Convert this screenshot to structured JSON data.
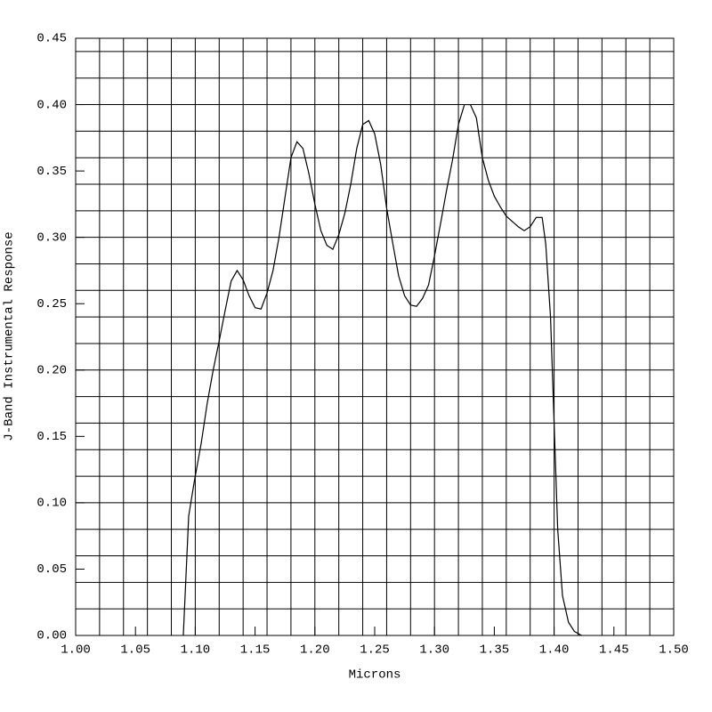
{
  "chart_data": {
    "type": "line",
    "xlabel": "Microns",
    "ylabel": "J-Band Instrumental Response",
    "x": [
      1.09,
      1.0945,
      1.099,
      1.105,
      1.11,
      1.115,
      1.12,
      1.125,
      1.13,
      1.135,
      1.14,
      1.145,
      1.15,
      1.155,
      1.16,
      1.165,
      1.17,
      1.175,
      1.18,
      1.185,
      1.19,
      1.195,
      1.2,
      1.205,
      1.21,
      1.215,
      1.22,
      1.225,
      1.23,
      1.235,
      1.24,
      1.245,
      1.25,
      1.255,
      1.26,
      1.265,
      1.27,
      1.275,
      1.28,
      1.285,
      1.29,
      1.295,
      1.3,
      1.305,
      1.31,
      1.315,
      1.32,
      1.325,
      1.33,
      1.335,
      1.34,
      1.345,
      1.35,
      1.355,
      1.36,
      1.365,
      1.37,
      1.375,
      1.38,
      1.385,
      1.39,
      1.393,
      1.397,
      1.4,
      1.403,
      1.407,
      1.412,
      1.417,
      1.423
    ],
    "series": [
      {
        "color": "#000000",
        "values": [
          0,
          0.09,
          0.115,
          0.145,
          0.175,
          0.2,
          0.222,
          0.245,
          0.267,
          0.275,
          0.268,
          0.256,
          0.247,
          0.246,
          0.258,
          0.275,
          0.3,
          0.33,
          0.36,
          0.372,
          0.367,
          0.348,
          0.325,
          0.305,
          0.294,
          0.291,
          0.302,
          0.318,
          0.34,
          0.367,
          0.385,
          0.388,
          0.378,
          0.355,
          0.322,
          0.296,
          0.271,
          0.256,
          0.249,
          0.248,
          0.254,
          0.264,
          0.286,
          0.31,
          0.335,
          0.358,
          0.385,
          0.4,
          0.4,
          0.39,
          0.36,
          0.343,
          0.331,
          0.323,
          0.316,
          0.312,
          0.308,
          0.305,
          0.308,
          0.315,
          0.315,
          0.295,
          0.24,
          0.16,
          0.08,
          0.03,
          0.01,
          0.003,
          0
        ]
      }
    ],
    "xlim": [
      1.0,
      1.5
    ],
    "ylim": [
      0,
      0.45
    ],
    "xticks": [
      {
        "value": 1.0,
        "label": "1.00"
      },
      {
        "value": 1.05,
        "label": "1.05"
      },
      {
        "value": 1.1,
        "label": "1.10"
      },
      {
        "value": 1.15,
        "label": "1.15"
      },
      {
        "value": 1.2,
        "label": "1.20"
      },
      {
        "value": 1.25,
        "label": "1.25"
      },
      {
        "value": 1.3,
        "label": "1.30"
      },
      {
        "value": 1.35,
        "label": "1.35"
      },
      {
        "value": 1.4,
        "label": "1.40"
      },
      {
        "value": 1.45,
        "label": "1.45"
      },
      {
        "value": 1.5,
        "label": "1.50"
      }
    ],
    "yticks": [
      {
        "value": 0,
        "label": "0.00"
      },
      {
        "value": 0.05,
        "label": "0.05"
      },
      {
        "value": 0.1,
        "label": "0.10"
      },
      {
        "value": 0.15,
        "label": "0.15"
      },
      {
        "value": 0.2,
        "label": "0.20"
      },
      {
        "value": 0.25,
        "label": "0.25"
      },
      {
        "value": 0.3,
        "label": "0.30"
      },
      {
        "value": 0.35,
        "label": "0.35"
      },
      {
        "value": 0.4,
        "label": "0.40"
      },
      {
        "value": 0.45,
        "label": "0.45"
      }
    ],
    "xgrid": [
      1.0,
      1.02,
      1.04,
      1.06,
      1.08,
      1.1,
      1.12,
      1.14,
      1.16,
      1.18,
      1.2,
      1.22,
      1.24,
      1.26,
      1.28,
      1.3,
      1.32,
      1.34,
      1.36,
      1.38,
      1.4,
      1.42,
      1.44,
      1.46,
      1.48,
      1.5
    ],
    "ygrid": [
      0,
      0.02,
      0.04,
      0.06,
      0.08,
      0.1,
      0.12,
      0.14,
      0.16,
      0.18,
      0.2,
      0.22,
      0.24,
      0.26,
      0.28,
      0.3,
      0.32,
      0.34,
      0.36,
      0.38,
      0.4,
      0.42,
      0.44
    ],
    "grid": true
  }
}
